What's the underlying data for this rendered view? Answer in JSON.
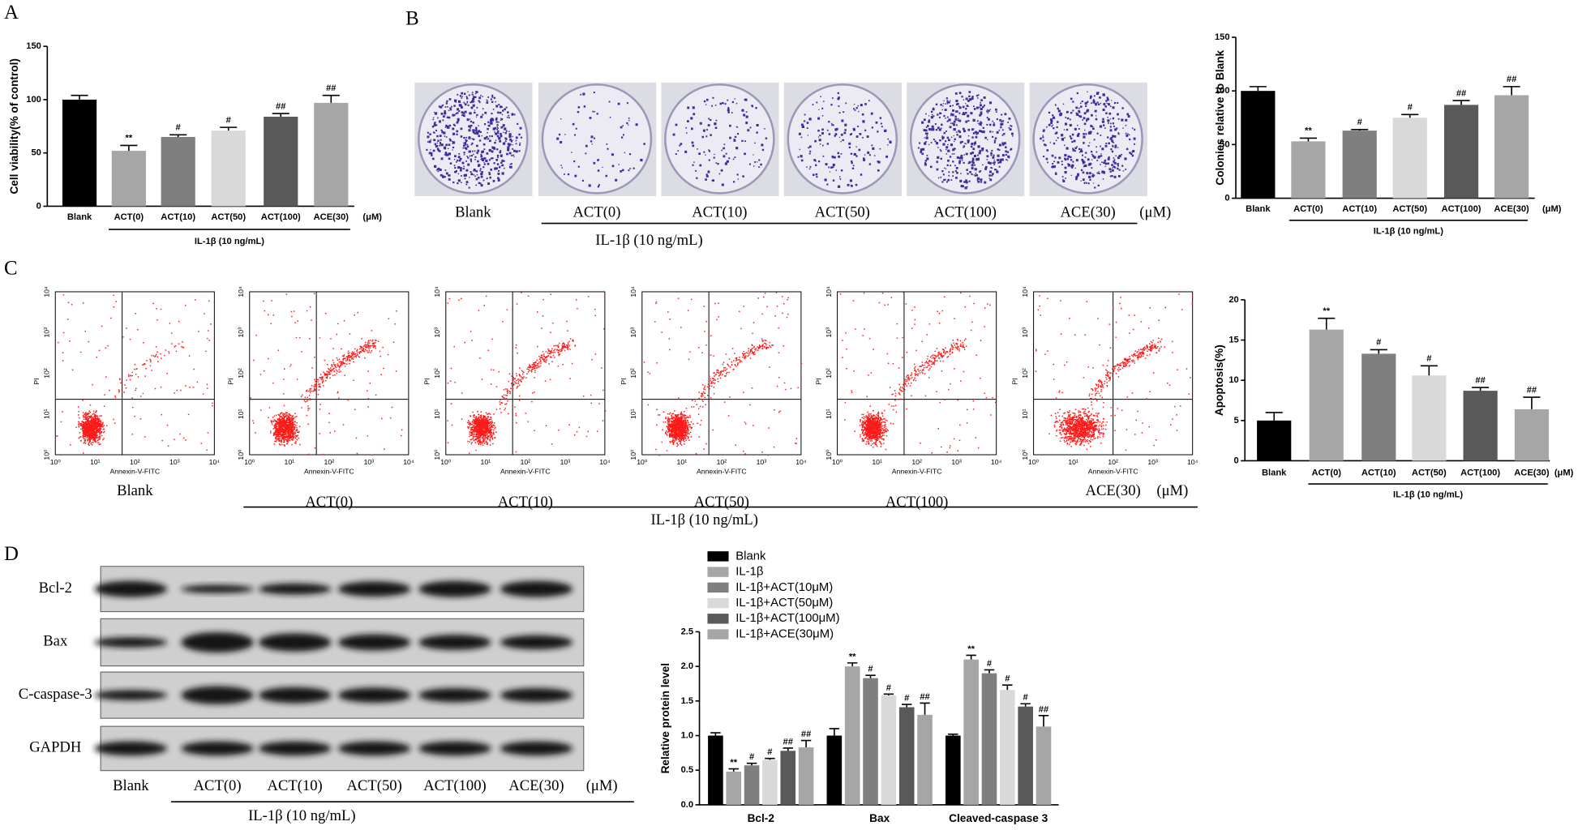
{
  "figure": {
    "panel_labels": [
      "A",
      "B",
      "C",
      "D"
    ],
    "treatment_label": "IL-1β (10 ng/mL)",
    "unit": "(μM)",
    "colony_labels": [
      "Blank",
      "ACT(0)",
      "ACT(10)",
      "ACT(50)",
      "ACT(100)",
      "ACE(30)"
    ],
    "flow": {
      "x_label": "Annexin-V-FITC",
      "y_label": "PI",
      "ticks": [
        "10⁰",
        "10¹",
        "10²",
        "10³",
        "10⁴"
      ],
      "labels": [
        "Blank",
        "ACT(0)",
        "ACT(10)",
        "ACT(50)",
        "ACT(100)",
        "ACE(30)"
      ]
    },
    "western": {
      "proteins": [
        "Bcl-2",
        "Bax",
        "C-caspase-3",
        "GAPDH"
      ],
      "lanes": [
        "Blank",
        "ACT(0)",
        "ACT(10)",
        "ACT(50)",
        "ACT(100)",
        "ACE(30)"
      ]
    }
  },
  "chart_data": [
    {
      "type": "bar",
      "y_label": "Cell viability(% of control)",
      "categories": [
        "Blank",
        "ACT(0)",
        "ACT(10)",
        "ACT(50)",
        "ACT(100)",
        "ACE(30)"
      ],
      "values": [
        100,
        52,
        65,
        71,
        84,
        97
      ],
      "errors": [
        4,
        5,
        2,
        3,
        3,
        7
      ],
      "significance": [
        null,
        "**",
        "#",
        "#",
        "##",
        "##"
      ],
      "colors": [
        "#000000",
        "#a6a6a6",
        "#7f7f7f",
        "#d9d9d9",
        "#595959",
        "#a6a6a6"
      ],
      "ylim": [
        0,
        150
      ],
      "yticks": [
        0,
        50,
        100,
        150
      ],
      "unit_label": "(μM)",
      "group_label": "IL-1β (10 ng/mL)"
    },
    {
      "type": "bar",
      "y_label": "Colonies relative to Blank",
      "categories": [
        "Blank",
        "ACT(0)",
        "ACT(10)",
        "ACT(50)",
        "ACT(100)",
        "ACE(30)"
      ],
      "values": [
        100,
        53,
        63,
        75,
        87,
        96
      ],
      "errors": [
        4,
        3,
        1,
        3,
        4,
        8
      ],
      "significance": [
        null,
        "**",
        "#",
        "#",
        "##",
        "##"
      ],
      "colors": [
        "#000000",
        "#a6a6a6",
        "#7f7f7f",
        "#d9d9d9",
        "#595959",
        "#a6a6a6"
      ],
      "ylim": [
        0,
        150
      ],
      "yticks": [
        0,
        50,
        100,
        150
      ],
      "unit_label": "(μM)",
      "group_label": "IL-1β (10 ng/mL)"
    },
    {
      "type": "bar",
      "y_label": "Apoptosis(%)",
      "categories": [
        "Blank",
        "ACT(0)",
        "ACT(10)",
        "ACT(50)",
        "ACT(100)",
        "ACE(30)"
      ],
      "values": [
        5,
        16.3,
        13.3,
        10.6,
        8.7,
        6.4
      ],
      "errors": [
        1,
        1.4,
        0.5,
        1.2,
        0.4,
        1.5
      ],
      "significance": [
        null,
        "**",
        "#",
        "#",
        "##",
        "##"
      ],
      "colors": [
        "#000000",
        "#a6a6a6",
        "#7f7f7f",
        "#d9d9d9",
        "#595959",
        "#a6a6a6"
      ],
      "ylim": [
        0,
        20
      ],
      "yticks": [
        0,
        5,
        10,
        15,
        20
      ],
      "unit_label": "(μM)",
      "group_label": "IL-1β (10 ng/mL)"
    },
    {
      "type": "grouped_bar",
      "y_label": "Relative protein level",
      "categories": [
        "Bcl-2",
        "Bax",
        "Cleaved-caspase 3"
      ],
      "series": [
        {
          "name": "Blank",
          "color": "#000000",
          "values": [
            1.0,
            1.0,
            1.0
          ],
          "errors": [
            0.04,
            0.1,
            0.02
          ],
          "significance": [
            null,
            null,
            null
          ]
        },
        {
          "name": "IL-1β",
          "color": "#a6a6a6",
          "values": [
            0.48,
            2.0,
            2.1
          ],
          "errors": [
            0.04,
            0.05,
            0.06
          ],
          "significance": [
            "**",
            "**",
            "**"
          ]
        },
        {
          "name": "IL-1β+ACT(10μM)",
          "color": "#7f7f7f",
          "values": [
            0.57,
            1.83,
            1.9
          ],
          "errors": [
            0.03,
            0.04,
            0.05
          ],
          "significance": [
            "#",
            "#",
            "#"
          ]
        },
        {
          "name": "IL-1β+ACT(50μM)",
          "color": "#d9d9d9",
          "values": [
            0.65,
            1.58,
            1.66
          ],
          "errors": [
            0.02,
            0.02,
            0.07
          ],
          "significance": [
            "#",
            "#",
            "#"
          ]
        },
        {
          "name": "IL-1β+ACT(100μM)",
          "color": "#595959",
          "values": [
            0.78,
            1.41,
            1.42
          ],
          "errors": [
            0.04,
            0.04,
            0.04
          ],
          "significance": [
            "##",
            "#",
            "#"
          ]
        },
        {
          "name": "IL-1β+ACE(30μM)",
          "color": "#a6a6a6",
          "values": [
            0.83,
            1.3,
            1.13
          ],
          "errors": [
            0.1,
            0.17,
            0.16
          ],
          "significance": [
            "##",
            "##",
            "##"
          ]
        }
      ],
      "ylim": [
        0,
        2.5
      ],
      "yticks": [
        {
          "value": 0,
          "label": "0.0"
        },
        {
          "value": 0.5,
          "label": "0.5"
        },
        {
          "value": 1,
          "label": "1.0"
        },
        {
          "value": 1.5,
          "label": "1.5"
        },
        {
          "value": 2,
          "label": "2.0"
        },
        {
          "value": 2.5,
          "label": "2.5"
        }
      ],
      "legend": "top-left"
    }
  ]
}
